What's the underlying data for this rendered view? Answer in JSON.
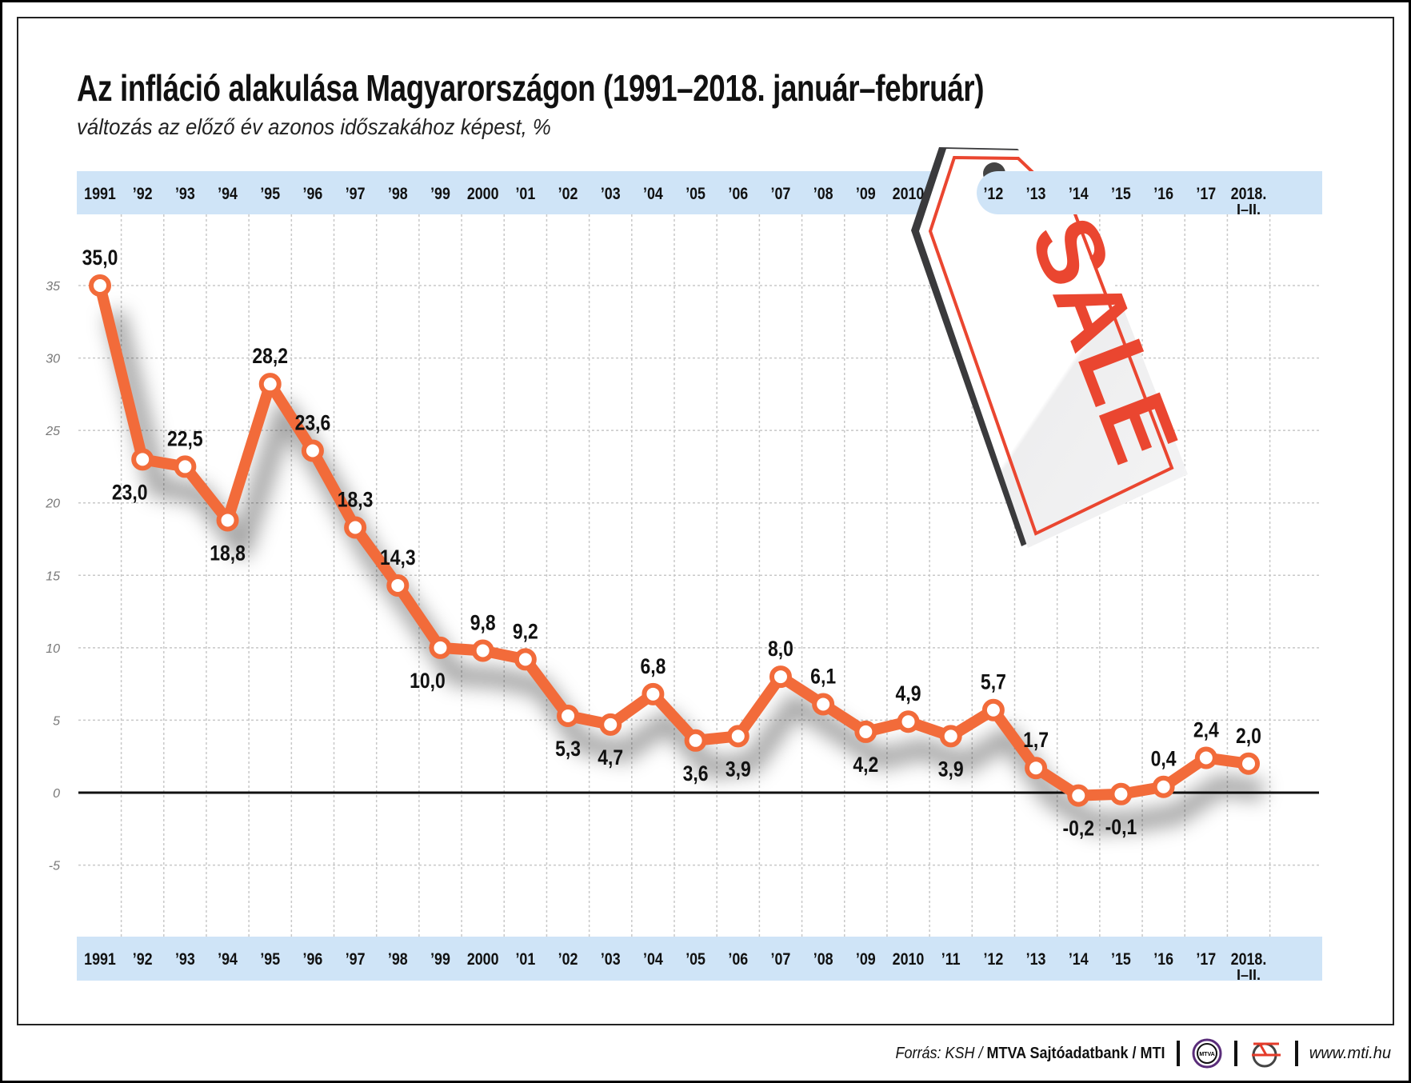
{
  "title": "Az infláció alakulása Magyarországon (1991–2018. január–február)",
  "subtitle": "változás az előző év azonos időszakához képest, %",
  "chart_data": {
    "type": "line",
    "title": "Az infláció alakulása Magyarországon (1991–2018. január–február)",
    "subtitle": "változás az előző év azonos időszakához képest, %",
    "categories": [
      "1991",
      "’92",
      "’93",
      "’94",
      "’95",
      "’96",
      "’97",
      "’98",
      "’99",
      "2000",
      "’01",
      "’02",
      "’03",
      "’04",
      "’05",
      "’06",
      "’07",
      "’08",
      "’09",
      "2010",
      "’11",
      "’12",
      "’13",
      "’14",
      "’15",
      "’16",
      "’17",
      "2018."
    ],
    "last_category_sublabel": "I–II.",
    "values": [
      35.0,
      23.0,
      22.5,
      18.8,
      28.2,
      23.6,
      18.3,
      14.3,
      10.0,
      9.8,
      9.2,
      5.3,
      4.7,
      6.8,
      3.6,
      3.9,
      8.0,
      6.1,
      4.2,
      4.9,
      3.9,
      5.7,
      1.7,
      -0.2,
      -0.1,
      0.4,
      2.4,
      2.0
    ],
    "value_labels": [
      "35,0",
      "23,0",
      "22,5",
      "18,8",
      "28,2",
      "23,6",
      "18,3",
      "14,3",
      "10,0",
      "9,8",
      "9,2",
      "5,3",
      "4,7",
      "6,8",
      "3,6",
      "3,9",
      "8,0",
      "6,1",
      "4,2",
      "4,9",
      "3,9",
      "5,7",
      "1,7",
      "-0,2",
      "-0,1",
      "0,4",
      "2,4",
      "2,0"
    ],
    "label_position": [
      "above",
      "below-left",
      "above",
      "below",
      "above",
      "above",
      "above",
      "above",
      "below-left",
      "above",
      "above",
      "below",
      "below",
      "above",
      "below",
      "below",
      "above",
      "above",
      "below",
      "above",
      "below",
      "above",
      "above",
      "below",
      "below",
      "above",
      "above",
      "above"
    ],
    "yticks": [
      35,
      30,
      25,
      20,
      15,
      10,
      5,
      0,
      -5
    ],
    "ylim": [
      -10,
      37
    ],
    "grid": true,
    "line_color": "#f26b3a",
    "band_color": "#cfe4f7"
  },
  "decoration": {
    "tag_text": "SALE",
    "tag_red": "#ea4630",
    "tag_dark_red": "#cc1f2b"
  },
  "footer": {
    "source_prefix": "Forrás: KSH / ",
    "source_bold": "MTVA Sajtóadatbank / MTI",
    "logo_mtva": "MTVA",
    "url": "www.mti.hu"
  }
}
